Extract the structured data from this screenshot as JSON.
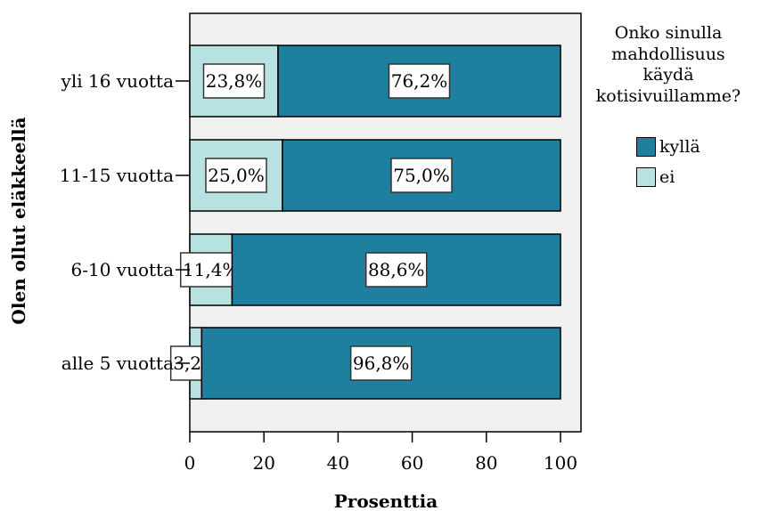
{
  "chart_data": {
    "type": "bar",
    "orientation": "horizontal",
    "stacked": true,
    "xlabel": "Prosenttia",
    "ylabel": "Olen ollut eläkkeellä",
    "xlim": [
      0,
      100
    ],
    "xticks": [
      "0",
      "20",
      "40",
      "60",
      "80",
      "100"
    ],
    "categories": [
      "yli 16 vuotta",
      "11-15 vuotta",
      "6-10 vuotta",
      "alle 5 vuotta"
    ],
    "series": [
      {
        "name": "ei",
        "values": [
          23.8,
          25.0,
          11.4,
          3.2
        ],
        "labels": [
          "23,8%",
          "25,0%",
          "11,4%",
          "3,2%"
        ],
        "color": "#b8e2e2"
      },
      {
        "name": "kyllä",
        "values": [
          76.2,
          75.0,
          88.6,
          96.8
        ],
        "labels": [
          "76,2%",
          "75,0%",
          "88,6%",
          "96,8%"
        ],
        "color": "#1f7f9e"
      }
    ],
    "legend": {
      "title_lines": [
        "Onko sinulla",
        "mahdollisuus",
        "käydä",
        "kotisivuillamme?"
      ],
      "items": [
        "kyllä",
        "ei"
      ],
      "position": "right"
    },
    "plot_background": "#f0f0f0",
    "grid": false
  }
}
